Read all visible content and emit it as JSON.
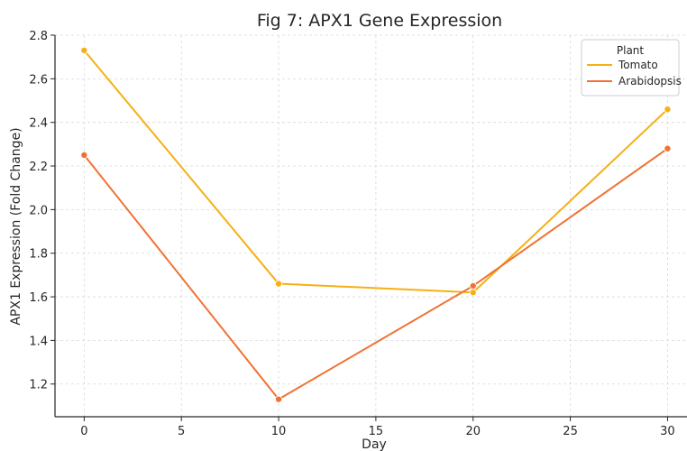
{
  "chart_data": {
    "type": "line",
    "title": "Fig 7: APX1 Gene Expression",
    "xlabel": "Day",
    "ylabel": "APX1 Expression (Fold Change)",
    "x": [
      0,
      10,
      20,
      30
    ],
    "xlim": [
      -1.5,
      31
    ],
    "ylim": [
      1.05,
      2.8
    ],
    "xticks": [
      0,
      5,
      10,
      15,
      20,
      25,
      30
    ],
    "yticks": [
      1.2,
      1.4,
      1.6,
      1.8,
      2.0,
      2.2,
      2.4,
      2.6,
      2.8
    ],
    "xtick_labels": [
      "0",
      "5",
      "10",
      "15",
      "20",
      "25",
      "30"
    ],
    "ytick_labels": [
      "1.2",
      "1.4",
      "1.6",
      "1.8",
      "2.0",
      "2.2",
      "2.4",
      "2.6",
      "2.8"
    ],
    "grid": true,
    "grid_style": "dashed",
    "legend": {
      "title": "Plant",
      "position": "top-right"
    },
    "series": [
      {
        "name": "Tomato",
        "color": "#f5b014",
        "values": [
          2.73,
          1.66,
          1.62,
          2.46
        ]
      },
      {
        "name": "Arabidopsis",
        "color": "#f07233",
        "values": [
          2.25,
          1.13,
          1.65,
          2.28
        ]
      }
    ]
  }
}
